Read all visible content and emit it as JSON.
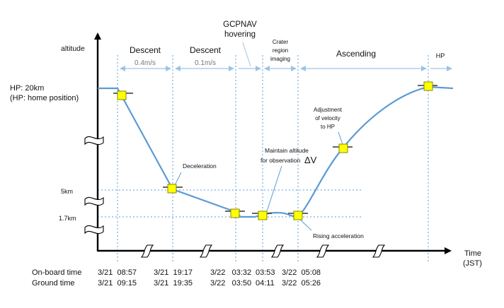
{
  "axes": {
    "y_label": "altitude",
    "x_label_line1": "Time",
    "x_label_line2": "(JST)"
  },
  "altitude_levels": {
    "hp_line1": "HP: 20km",
    "hp_line2": "(HP: home position)",
    "five_km": "5km",
    "one_seven_km": "1.7km"
  },
  "phases": {
    "descent_1": "Descent",
    "descent_1_rate": "0.4m/s",
    "descent_2": "Descent",
    "descent_2_rate": "0.1m/s",
    "gcpnav_line1": "GCPNAV",
    "gcpnav_line2": "hovering",
    "crater_line1": "Crater",
    "crater_line2": "region",
    "crater_line3": "imaging",
    "ascending": "Ascending",
    "hp": "HP"
  },
  "annotations": {
    "deceleration": "Deceleration",
    "maintain_line1": "Maintain altitude",
    "maintain_line2": "for observation",
    "delta_v": "ΔV",
    "rising_acceleration": "Rising acceleration",
    "adjustment_line1": "Adjustment",
    "adjustment_line2": "of velocity",
    "adjustment_line3": "to HP"
  },
  "time_row_labels": {
    "onboard": "On-board time",
    "ground": "Ground time"
  },
  "time_columns": [
    {
      "onboard": "3/21  08:57",
      "ground": "3/21  09:15"
    },
    {
      "onboard": "3/21  19:17",
      "ground": "3/21  19:35"
    },
    {
      "onboard": "3/22   03:32",
      "ground": "3/22   03:50"
    },
    {
      "onboard": "03:53",
      "ground": "04:11"
    },
    {
      "onboard": "3/22  05:08",
      "ground": "3/22  05:26"
    }
  ],
  "colors": {
    "profile_line": "#5b9bd5",
    "guide_line": "#5b9bd5",
    "marker_fill": "#ffff00",
    "marker_stroke": "#8a8a00",
    "axis": "#000000",
    "phase_arrow": "#9dc3e6"
  }
}
